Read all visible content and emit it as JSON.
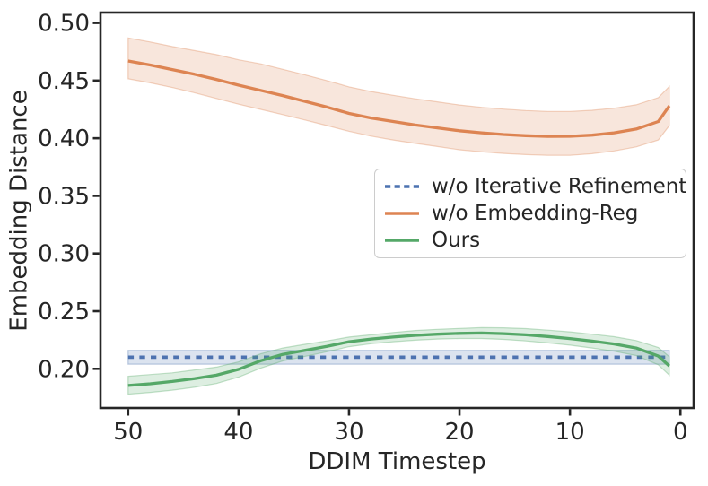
{
  "chart_data": {
    "type": "line",
    "title": "",
    "xlabel": "DDIM Timestep",
    "ylabel": "Embedding Distance",
    "axis_color": "#262626",
    "band_alpha": 0.2,
    "grid": false,
    "legend": {
      "position": "center-right",
      "border_color": "#cccccc",
      "entries": [
        "w/o Iterative Refinement",
        "w/o Embedding-Reg",
        "Ours"
      ]
    },
    "x_axis": {
      "reversed": true,
      "lim": [
        52.5,
        -1.2
      ],
      "ticks": [
        50,
        40,
        30,
        20,
        10,
        0
      ],
      "tick_labels": [
        "50",
        "40",
        "30",
        "20",
        "10",
        "0"
      ]
    },
    "y_axis": {
      "lim": [
        0.166,
        0.509
      ],
      "ticks": [
        0.2,
        0.25,
        0.3,
        0.35,
        0.4,
        0.45,
        0.5
      ],
      "tick_labels": [
        "0.20",
        "0.25",
        "0.30",
        "0.35",
        "0.40",
        "0.45",
        "0.50"
      ]
    },
    "x": [
      50,
      48,
      46,
      44,
      42,
      40,
      38,
      36,
      34,
      32,
      30,
      28,
      26,
      24,
      22,
      20,
      18,
      16,
      14,
      12,
      10,
      8,
      6,
      4,
      2,
      1
    ],
    "series": [
      {
        "name": "w/o Iterative Refinement",
        "color": "#4c72b0",
        "linestyle": "dashed",
        "values": [
          0.21,
          0.21,
          0.21,
          0.21,
          0.21,
          0.21,
          0.21,
          0.21,
          0.21,
          0.21,
          0.21,
          0.21,
          0.21,
          0.21,
          0.21,
          0.21,
          0.21,
          0.21,
          0.21,
          0.21,
          0.21,
          0.21,
          0.21,
          0.21,
          0.21,
          0.21
        ],
        "upper": [
          0.216,
          0.216,
          0.216,
          0.216,
          0.216,
          0.216,
          0.216,
          0.216,
          0.216,
          0.216,
          0.216,
          0.216,
          0.216,
          0.216,
          0.216,
          0.216,
          0.216,
          0.216,
          0.216,
          0.216,
          0.216,
          0.216,
          0.216,
          0.216,
          0.216,
          0.216
        ],
        "lower": [
          0.204,
          0.204,
          0.204,
          0.204,
          0.204,
          0.204,
          0.204,
          0.204,
          0.204,
          0.204,
          0.204,
          0.204,
          0.204,
          0.204,
          0.204,
          0.204,
          0.204,
          0.204,
          0.204,
          0.204,
          0.204,
          0.204,
          0.204,
          0.204,
          0.204,
          0.204
        ]
      },
      {
        "name": "w/o Embedding-Reg",
        "color": "#dd8452",
        "linestyle": "solid",
        "values": [
          0.467,
          0.4635,
          0.4595,
          0.4555,
          0.451,
          0.446,
          0.4415,
          0.437,
          0.432,
          0.427,
          0.4215,
          0.4175,
          0.4145,
          0.4115,
          0.409,
          0.4065,
          0.4047,
          0.4032,
          0.4022,
          0.4016,
          0.4017,
          0.4027,
          0.4047,
          0.408,
          0.4145,
          0.428
        ],
        "upper": [
          0.487,
          0.4835,
          0.4795,
          0.476,
          0.4725,
          0.468,
          0.4645,
          0.4598,
          0.455,
          0.45,
          0.4445,
          0.4405,
          0.4372,
          0.4342,
          0.4315,
          0.4288,
          0.4268,
          0.4252,
          0.424,
          0.4232,
          0.4232,
          0.4242,
          0.426,
          0.429,
          0.4352,
          0.4448
        ],
        "lower": [
          0.4515,
          0.448,
          0.444,
          0.4395,
          0.4345,
          0.4295,
          0.425,
          0.4205,
          0.4158,
          0.411,
          0.406,
          0.4018,
          0.3985,
          0.3955,
          0.3928,
          0.39,
          0.3882,
          0.3868,
          0.3858,
          0.3852,
          0.3852,
          0.3866,
          0.389,
          0.3925,
          0.3985,
          0.411
        ]
      },
      {
        "name": "Ours",
        "color": "#55a868",
        "linestyle": "solid",
        "values": [
          0.1855,
          0.187,
          0.189,
          0.1915,
          0.1945,
          0.1995,
          0.207,
          0.2125,
          0.216,
          0.2195,
          0.2235,
          0.2258,
          0.2275,
          0.229,
          0.23,
          0.2307,
          0.231,
          0.2305,
          0.2295,
          0.228,
          0.2262,
          0.224,
          0.2215,
          0.218,
          0.211,
          0.2025
        ],
        "upper": [
          0.1935,
          0.195,
          0.1965,
          0.199,
          0.2015,
          0.206,
          0.213,
          0.218,
          0.2212,
          0.2242,
          0.2275,
          0.2295,
          0.2315,
          0.2332,
          0.2342,
          0.235,
          0.2357,
          0.2355,
          0.2348,
          0.2335,
          0.232,
          0.23,
          0.2278,
          0.2245,
          0.2185,
          0.2105
        ],
        "lower": [
          0.178,
          0.1795,
          0.1815,
          0.184,
          0.1872,
          0.1928,
          0.2005,
          0.2068,
          0.2108,
          0.2148,
          0.2192,
          0.2218,
          0.2235,
          0.2248,
          0.2258,
          0.2263,
          0.2263,
          0.2255,
          0.2242,
          0.2225,
          0.2205,
          0.218,
          0.2152,
          0.2115,
          0.2035,
          0.1945
        ]
      }
    ]
  }
}
